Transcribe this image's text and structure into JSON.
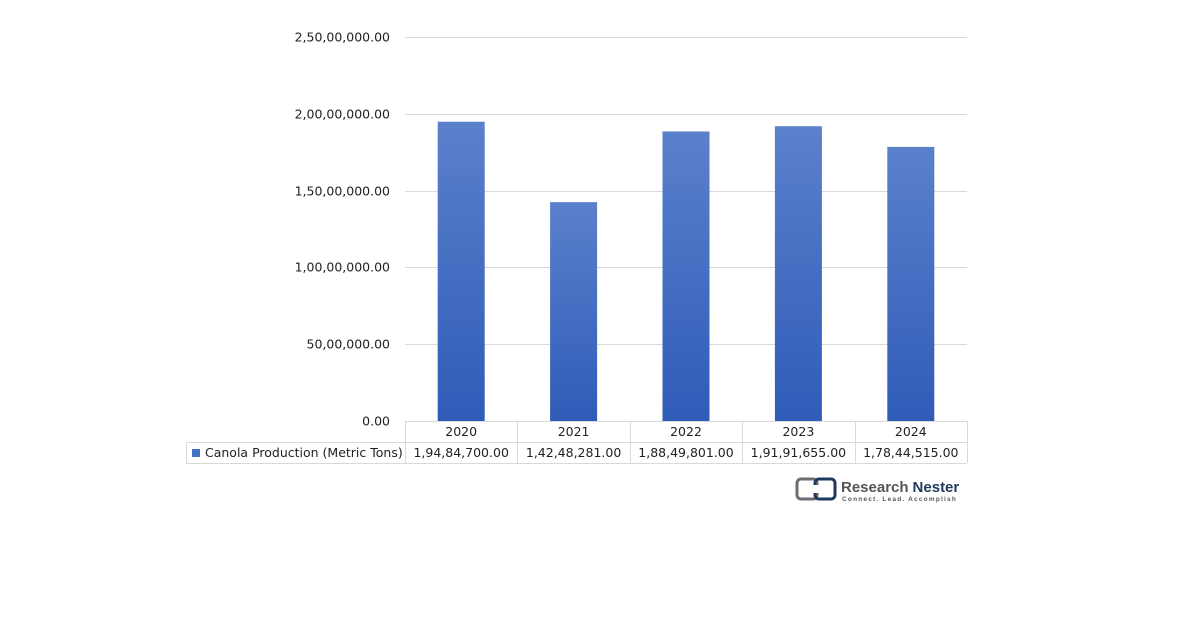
{
  "chart_data": {
    "type": "bar",
    "categories": [
      "2020",
      "2021",
      "2022",
      "2023",
      "2024"
    ],
    "series": [
      {
        "name": "Canola Production (Metric Tons)",
        "values": [
          19484700,
          14248281,
          18849801,
          19191655,
          17844515
        ],
        "value_labels": [
          "1,94,84,700.00",
          "1,42,48,281.00",
          "1,88,49,801.00",
          "1,91,91,655.00",
          "1,78,44,515.00"
        ],
        "color": "#4472c4"
      }
    ],
    "y_ticks": [
      0,
      5000000,
      10000000,
      15000000,
      20000000,
      25000000
    ],
    "y_tick_labels": [
      "0.00",
      "50,00,000.00",
      "1,00,00,000.00",
      "1,50,00,000.00",
      "2,00,00,000.00",
      "2,50,00,000.00"
    ],
    "ylim": [
      0,
      25000000
    ],
    "grid": true,
    "legend": "data-table",
    "title": "",
    "xlabel": "",
    "ylabel": ""
  },
  "branding": {
    "name_part1": "Research",
    "name_part2": "Nester",
    "tagline": "Connect. Lead. Accomplish"
  }
}
